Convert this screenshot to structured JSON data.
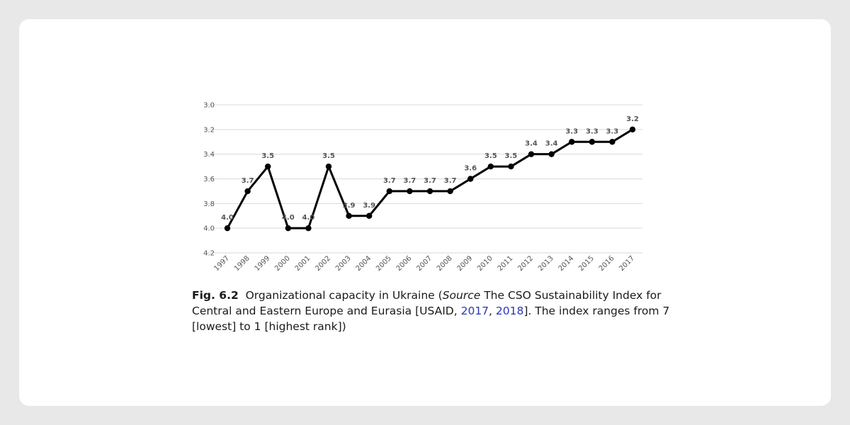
{
  "chart_data": {
    "type": "line",
    "title": "",
    "xlabel": "",
    "ylabel": "",
    "y_inverted": true,
    "ylim": [
      3.0,
      4.2
    ],
    "yticks": [
      3.0,
      3.2,
      3.4,
      3.6,
      3.8,
      4.0,
      4.2
    ],
    "ytick_labels": [
      "3.0",
      "3.2",
      "3.4",
      "3.6",
      "3.8",
      "4.0",
      "4.2"
    ],
    "grid": true,
    "categories": [
      "1997",
      "1998",
      "1999",
      "2000",
      "2001",
      "2002",
      "2003",
      "2004",
      "2005",
      "2006",
      "2007",
      "2008",
      "2009",
      "2010",
      "2011",
      "2012",
      "2013",
      "2014",
      "2015",
      "2016",
      "2017"
    ],
    "series": [
      {
        "name": "Organizational capacity",
        "color": "#000000",
        "values": [
          4.0,
          3.7,
          3.5,
          4.0,
          4.0,
          3.5,
          3.9,
          3.9,
          3.7,
          3.7,
          3.7,
          3.7,
          3.6,
          3.5,
          3.5,
          3.4,
          3.4,
          3.3,
          3.3,
          3.3,
          3.2
        ],
        "value_labels": [
          "4.0",
          "3.7",
          "3.5",
          "4.0",
          "4.0",
          "3.5",
          "3.9",
          "3.9",
          "3.7",
          "3.7",
          "3.7",
          "3.7",
          "3.6",
          "3.5",
          "3.5",
          "3.4",
          "3.4",
          "3.3",
          "3.3",
          "3.3",
          "3.2"
        ]
      }
    ]
  },
  "caption": {
    "fig_label": "Fig. 6.2",
    "text_before_italic": "Organizational capacity in Ukraine (",
    "italic": "Source",
    "text_mid": " The CSO Sustainability Index for Central and Eastern Europe and Eurasia [USAID, ",
    "ref1": "2017",
    "sep": ", ",
    "ref2": "2018",
    "text_after": "]. The index ranges from 7 [lowest] to 1 [highest rank])"
  },
  "colors": {
    "background": "#e8e8e8",
    "card": "#ffffff",
    "line": "#000000",
    "grid": "#d9d9d9",
    "link": "#2a36b8"
  }
}
